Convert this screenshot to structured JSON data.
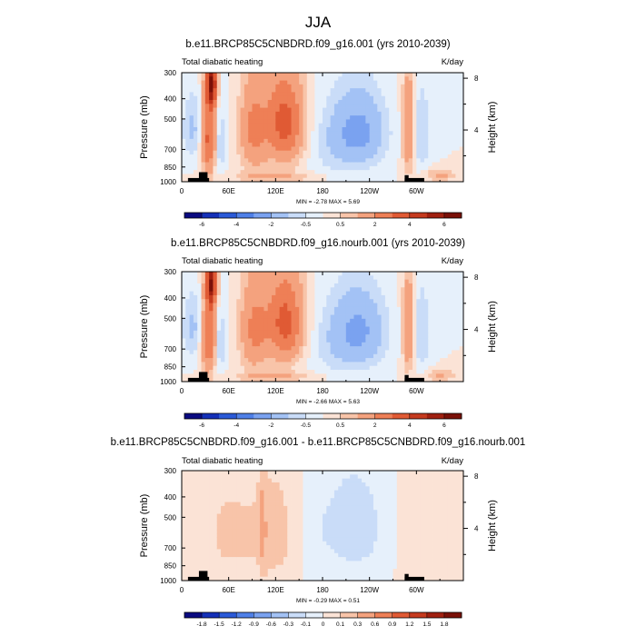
{
  "figure": {
    "title": "JJA"
  },
  "chart_data": [
    {
      "type": "heatmap",
      "title": "b.e11.BRCP85C5CNBDRD.f09_g16.001 (yrs 2010-2039)",
      "left_label": "Total diabatic heating",
      "right_label": "K/day",
      "xlabel": "",
      "ylabel": "Pressure (mb)",
      "ylabel_right": "Height (km)",
      "x_ticks": [
        "0",
        "60E",
        "120E",
        "180",
        "120W",
        "60W"
      ],
      "x_tick_values": [
        0,
        60,
        120,
        180,
        240,
        300
      ],
      "xlim": [
        0,
        360
      ],
      "y_ticks": [
        "300",
        "400",
        "500",
        "700",
        "850",
        "1000"
      ],
      "y_tick_values": [
        300,
        400,
        500,
        700,
        850,
        1000
      ],
      "ylim": [
        300,
        1000
      ],
      "right_ticks": [
        "8",
        "4"
      ],
      "right_tick_values": [
        8,
        4
      ],
      "minmax": "MIN = -2.78  MAX =  5.69",
      "colorbar_labels": [
        "-6",
        "-4",
        "-2",
        "-0.5",
        "0.5",
        "2",
        "4",
        "6"
      ],
      "colorbar_colors": [
        "#0a0a80",
        "#1430b8",
        "#2a5ad8",
        "#4f80e8",
        "#7aa2f0",
        "#a3c2f5",
        "#c9dcf8",
        "#e6f0fb",
        "#fbe3d6",
        "#f8c4a9",
        "#f4a27e",
        "#ee7f56",
        "#e05a34",
        "#c53a1e",
        "#a02010",
        "#7a1008"
      ],
      "features": [
        {
          "name": "dipole-warm",
          "lon": 35,
          "p": 620,
          "value": 3.5,
          "lon_w": 10,
          "p_w": 260
        },
        {
          "name": "africa-cool",
          "lon": 15,
          "p": 560,
          "value": -1.2,
          "lon_w": 14,
          "p_w": 200
        },
        {
          "name": "indian-cool",
          "lon": 48,
          "p": 650,
          "value": -1.3,
          "lon_w": 8,
          "p_w": 250
        },
        {
          "name": "asia-warm-upper",
          "lon": 38,
          "p": 340,
          "value": 5.5,
          "lon_w": 7,
          "p_w": 90
        },
        {
          "name": "monsoon-warm",
          "lon": 92,
          "p": 560,
          "value": 2.2,
          "lon_w": 18,
          "p_w": 300
        },
        {
          "name": "pacific-warm",
          "lon": 132,
          "p": 520,
          "value": 3.5,
          "lon_w": 24,
          "p_w": 260
        },
        {
          "name": "bl-warm",
          "lon": 120,
          "p": 950,
          "value": 0.9,
          "lon_w": 60,
          "p_w": 50
        },
        {
          "name": "east-pac-cool",
          "lon": 225,
          "p": 580,
          "value": -2.4,
          "lon_w": 34,
          "p_w": 240
        },
        {
          "name": "dateline-weak",
          "lon": 185,
          "p": 700,
          "value": -0.4,
          "lon_w": 30,
          "p_w": 300
        },
        {
          "name": "amazon-warm",
          "lon": 290,
          "p": 560,
          "value": 2.4,
          "lon_w": 8,
          "p_w": 300
        },
        {
          "name": "atlantic-cool",
          "lon": 305,
          "p": 580,
          "value": -1.0,
          "lon_w": 14,
          "p_w": 280
        },
        {
          "name": "atl-bl-warm",
          "lon": 330,
          "p": 930,
          "value": 1.2,
          "lon_w": 20,
          "p_w": 70
        }
      ],
      "topography": [
        {
          "lon0": 8,
          "lon1": 35,
          "psurf": 960
        },
        {
          "lon0": 22,
          "lon1": 33,
          "psurf": 900
        },
        {
          "lon0": 100,
          "lon1": 103,
          "psurf": 985
        },
        {
          "lon0": 285,
          "lon1": 310,
          "psurf": 960
        },
        {
          "lon0": 285,
          "lon1": 290,
          "psurf": 930
        }
      ]
    },
    {
      "type": "heatmap",
      "title": "b.e11.BRCP85C5CNBDRD.f09_g16.nourb.001 (yrs 2010-2039)",
      "left_label": "Total diabatic heating",
      "right_label": "K/day",
      "xlabel": "",
      "ylabel": "Pressure (mb)",
      "ylabel_right": "Height (km)",
      "x_ticks": [
        "0",
        "60E",
        "120E",
        "180",
        "120W",
        "60W"
      ],
      "x_tick_values": [
        0,
        60,
        120,
        180,
        240,
        300
      ],
      "xlim": [
        0,
        360
      ],
      "y_ticks": [
        "300",
        "400",
        "500",
        "700",
        "850",
        "1000"
      ],
      "y_tick_values": [
        300,
        400,
        500,
        700,
        850,
        1000
      ],
      "ylim": [
        300,
        1000
      ],
      "right_ticks": [
        "8",
        "4"
      ],
      "right_tick_values": [
        8,
        4
      ],
      "minmax": "MIN = -2.66  MAX =  5.63",
      "colorbar_labels": [
        "-6",
        "-4",
        "-2",
        "-0.5",
        "0.5",
        "2",
        "4",
        "6"
      ],
      "colorbar_colors": [
        "#0a0a80",
        "#1430b8",
        "#2a5ad8",
        "#4f80e8",
        "#7aa2f0",
        "#a3c2f5",
        "#c9dcf8",
        "#e6f0fb",
        "#fbe3d6",
        "#f8c4a9",
        "#f4a27e",
        "#ee7f56",
        "#e05a34",
        "#c53a1e",
        "#a02010",
        "#7a1008"
      ],
      "features": [
        {
          "name": "dipole-warm",
          "lon": 35,
          "p": 620,
          "value": 3.4,
          "lon_w": 10,
          "p_w": 260
        },
        {
          "name": "africa-cool",
          "lon": 15,
          "p": 560,
          "value": -1.2,
          "lon_w": 14,
          "p_w": 200
        },
        {
          "name": "indian-cool",
          "lon": 48,
          "p": 650,
          "value": -1.3,
          "lon_w": 8,
          "p_w": 250
        },
        {
          "name": "asia-warm-upper",
          "lon": 38,
          "p": 340,
          "value": 5.3,
          "lon_w": 7,
          "p_w": 90
        },
        {
          "name": "monsoon-warm",
          "lon": 92,
          "p": 560,
          "value": 2.1,
          "lon_w": 18,
          "p_w": 300
        },
        {
          "name": "pacific-warm",
          "lon": 132,
          "p": 520,
          "value": 3.4,
          "lon_w": 24,
          "p_w": 260
        },
        {
          "name": "bl-warm",
          "lon": 120,
          "p": 950,
          "value": 0.9,
          "lon_w": 60,
          "p_w": 50
        },
        {
          "name": "east-pac-cool",
          "lon": 225,
          "p": 580,
          "value": -2.3,
          "lon_w": 34,
          "p_w": 240
        },
        {
          "name": "dateline-weak",
          "lon": 185,
          "p": 700,
          "value": -0.4,
          "lon_w": 30,
          "p_w": 300
        },
        {
          "name": "amazon-warm",
          "lon": 290,
          "p": 560,
          "value": 2.3,
          "lon_w": 8,
          "p_w": 300
        },
        {
          "name": "atlantic-cool",
          "lon": 305,
          "p": 580,
          "value": -1.0,
          "lon_w": 14,
          "p_w": 280
        },
        {
          "name": "atl-bl-warm",
          "lon": 330,
          "p": 930,
          "value": 1.1,
          "lon_w": 20,
          "p_w": 70
        }
      ],
      "topography": [
        {
          "lon0": 8,
          "lon1": 35,
          "psurf": 960
        },
        {
          "lon0": 22,
          "lon1": 33,
          "psurf": 900
        },
        {
          "lon0": 100,
          "lon1": 103,
          "psurf": 985
        },
        {
          "lon0": 285,
          "lon1": 310,
          "psurf": 960
        },
        {
          "lon0": 285,
          "lon1": 290,
          "psurf": 930
        }
      ]
    },
    {
      "type": "heatmap",
      "title": "b.e11.BRCP85C5CNBDRD.f09_g16.001 - b.e11.BRCP85C5CNBDRD.f09_g16.nourb.001",
      "left_label": "Total diabatic heating",
      "right_label": "K/day",
      "xlabel": "",
      "ylabel": "Pressure (mb)",
      "ylabel_right": "Height (km)",
      "x_ticks": [
        "0",
        "60E",
        "120E",
        "180",
        "120W",
        "60W"
      ],
      "x_tick_values": [
        0,
        60,
        120,
        180,
        240,
        300
      ],
      "xlim": [
        0,
        360
      ],
      "y_ticks": [
        "300",
        "400",
        "500",
        "700",
        "850",
        "1000"
      ],
      "y_tick_values": [
        300,
        400,
        500,
        700,
        850,
        1000
      ],
      "ylim": [
        300,
        1000
      ],
      "right_ticks": [
        "8",
        "4"
      ],
      "right_tick_values": [
        8,
        4
      ],
      "minmax": "MIN = -0.29  MAX =  0.51",
      "colorbar_labels": [
        "-1.8",
        "-1.5",
        "-1.2",
        "-0.9",
        "-0.6",
        "-0.3",
        "-0.1",
        "0",
        "0.1",
        "0.3",
        "0.6",
        "0.9",
        "1.2",
        "1.5",
        "1.8"
      ],
      "colorbar_colors": [
        "#0a0a80",
        "#1430b8",
        "#2a5ad8",
        "#4f80e8",
        "#7aa2f0",
        "#a3c2f5",
        "#c9dcf8",
        "#e6f0fb",
        "#fbe3d6",
        "#f8c4a9",
        "#f4a27e",
        "#ee7f56",
        "#e05a34",
        "#c53a1e",
        "#a02010",
        "#7a1008"
      ],
      "features": [
        {
          "name": "west-warm",
          "lon": 60,
          "p": 600,
          "value": 0.12,
          "lon_w": 40,
          "p_w": 400
        },
        {
          "name": "mid-warm",
          "lon": 120,
          "p": 600,
          "value": 0.14,
          "lon_w": 30,
          "p_w": 400
        },
        {
          "name": "streak-warm",
          "lon": 104,
          "p": 560,
          "value": 0.35,
          "lon_w": 4,
          "p_w": 300
        },
        {
          "name": "pacific-cool",
          "lon": 220,
          "p": 560,
          "value": -0.18,
          "lon_w": 40,
          "p_w": 320
        },
        {
          "name": "dateline-cool",
          "lon": 170,
          "p": 600,
          "value": -0.05,
          "lon_w": 20,
          "p_w": 400
        },
        {
          "name": "atl-warm",
          "lon": 305,
          "p": 600,
          "value": 0.06,
          "lon_w": 30,
          "p_w": 400
        }
      ],
      "topography": [
        {
          "lon0": 8,
          "lon1": 35,
          "psurf": 960
        },
        {
          "lon0": 22,
          "lon1": 33,
          "psurf": 900
        },
        {
          "lon0": 100,
          "lon1": 103,
          "psurf": 985
        },
        {
          "lon0": 285,
          "lon1": 310,
          "psurf": 960
        },
        {
          "lon0": 285,
          "lon1": 290,
          "psurf": 930
        }
      ]
    }
  ]
}
